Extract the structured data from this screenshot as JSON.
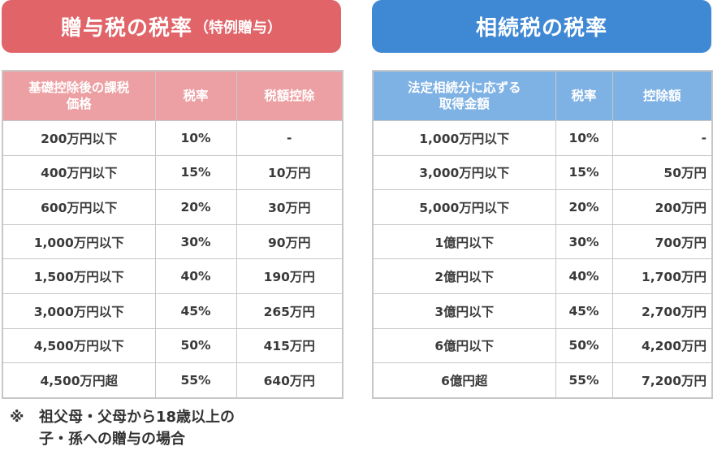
{
  "gift": {
    "title": "贈与税の税率",
    "subtitle": "（特例贈与）",
    "headers": {
      "base": "基礎控除後の課税価格",
      "rate": "税率",
      "deduction": "税額控除"
    },
    "rows": [
      {
        "amount": "200万円以下",
        "rate": "10%",
        "deduction": "-"
      },
      {
        "amount": "400万円以下",
        "rate": "15%",
        "deduction": "10万円"
      },
      {
        "amount": "600万円以下",
        "rate": "20%",
        "deduction": "30万円"
      },
      {
        "amount": "1,000万円以下",
        "rate": "30%",
        "deduction": "90万円"
      },
      {
        "amount": "1,500万円以下",
        "rate": "40%",
        "deduction": "190万円"
      },
      {
        "amount": "3,000万円以下",
        "rate": "45%",
        "deduction": "265万円"
      },
      {
        "amount": "4,500万円以下",
        "rate": "50%",
        "deduction": "415万円"
      },
      {
        "amount": "4,500万円超",
        "rate": "55%",
        "deduction": "640万円"
      }
    ]
  },
  "inheritance": {
    "title": "相続税の税率",
    "headers": {
      "base": "法定相続分に応ずる取得金額",
      "rate": "税率",
      "deduction": "控除額"
    },
    "rows": [
      {
        "amount": "1,000万円以下",
        "rate": "10%",
        "deduction": "-"
      },
      {
        "amount": "3,000万円以下",
        "rate": "15%",
        "deduction": "50万円"
      },
      {
        "amount": "5,000万円以下",
        "rate": "20%",
        "deduction": "200万円"
      },
      {
        "amount": "1億円以下",
        "rate": "30%",
        "deduction": "700万円"
      },
      {
        "amount": "2億円以下",
        "rate": "40%",
        "deduction": "1,700万円"
      },
      {
        "amount": "3億円以下",
        "rate": "45%",
        "deduction": "2,700万円"
      },
      {
        "amount": "6億円以下",
        "rate": "50%",
        "deduction": "4,200万円"
      },
      {
        "amount": "6億円超",
        "rate": "55%",
        "deduction": "7,200万円"
      }
    ]
  },
  "note": {
    "mark": "※",
    "text": "祖父母・父母から18歳以上の子・孫への贈与の場合"
  },
  "colors": {
    "gift_banner": "#e06468",
    "gift_header": "#eda0a3",
    "inheritance_banner": "#3f88d4",
    "inheritance_header": "#7fb2e4"
  }
}
